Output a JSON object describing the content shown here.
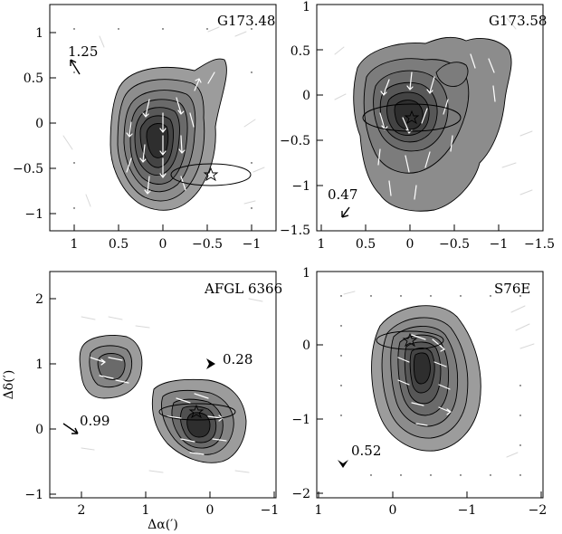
{
  "chart_data": [
    {
      "type": "contour",
      "title": "G173.48",
      "xlim": [
        1.35,
        -1.1
      ],
      "ylim": [
        -1.2,
        1.25
      ],
      "x_ticks": [
        1,
        0.5,
        0,
        -0.5,
        -1
      ],
      "x_tick_labels": [
        "1",
        "0.5",
        "0",
        "−0.5",
        "−1"
      ],
      "y_ticks": [
        1,
        0.5,
        0,
        -0.5,
        -1
      ],
      "y_tick_labels": [
        "1",
        "0.5",
        "0",
        "−0.5",
        "−1"
      ],
      "peak": [
        0.0,
        -0.1
      ],
      "contour_levels": 7,
      "star": [
        -0.5,
        -0.57
      ],
      "beam": {
        "center": [
          -0.5,
          -0.57
        ],
        "major": 0.9,
        "minor": 0.24,
        "angle_deg": 0
      },
      "scale_vector_value": "1.25",
      "scale_vector_pos": [
        1.05,
        0.72
      ],
      "scale_vector_dir_deg": 120,
      "ylabel": "",
      "xlabel": ""
    },
    {
      "type": "contour",
      "title": "G173.58",
      "xlim": [
        1.05,
        -1.5
      ],
      "ylim": [
        -1.5,
        1.0
      ],
      "x_ticks": [
        1,
        0.5,
        0,
        -0.5,
        -1,
        -1.5
      ],
      "x_tick_labels": [
        "1",
        "0.5",
        "0",
        "−0.5",
        "−1",
        "−1.5"
      ],
      "y_ticks": [
        1,
        0.5,
        0,
        -0.5,
        -1,
        -1.5
      ],
      "y_tick_labels": [
        "1",
        "0.5",
        "0",
        "−0.5",
        "−1",
        "−1.5"
      ],
      "peak": [
        0.0,
        -0.25
      ],
      "contour_levels": 6,
      "star": [
        -0.02,
        -0.26
      ],
      "beam": {
        "center": [
          -0.02,
          -0.26
        ],
        "major": 1.08,
        "minor": 0.3,
        "angle_deg": 0
      },
      "scale_vector_value": "0.47",
      "scale_vector_pos": [
        0.73,
        -1.28
      ],
      "scale_vector_dir_deg": 225,
      "ylabel": "",
      "xlabel": ""
    },
    {
      "type": "contour",
      "title": "AFGL 6366",
      "xlim": [
        2.5,
        -1.0
      ],
      "ylim": [
        -1.0,
        2.5
      ],
      "x_ticks": [
        2,
        1,
        0,
        -1
      ],
      "x_tick_labels": [
        "2",
        "1",
        "0",
        "−1"
      ],
      "y_ticks": [
        2,
        1,
        0,
        -1
      ],
      "y_tick_labels": [
        "2",
        "1",
        "0",
        "−1"
      ],
      "peak": [
        0.05,
        0.1
      ],
      "secondary_peak": [
        1.45,
        0.95
      ],
      "contour_levels": 7,
      "star": [
        0.2,
        0.26
      ],
      "beam": {
        "center": [
          0.2,
          0.26
        ],
        "major": 1.1,
        "minor": 0.2,
        "angle_deg": 0
      },
      "scale_vector_value": "0.99",
      "scale_vector_pos": [
        2.05,
        0.08
      ],
      "scale_vector_dir_deg": 330,
      "second_scale_vector_value": "0.28",
      "second_scale_vector_pos": [
        0.1,
        1.05
      ],
      "ylabel": "Δδ(′)",
      "xlabel": "Δα(′)"
    },
    {
      "type": "contour",
      "title": "S76E",
      "xlim": [
        1.0,
        -2.0
      ],
      "ylim": [
        -2.0,
        1.0
      ],
      "x_ticks": [
        1,
        0,
        -1,
        -2
      ],
      "x_tick_labels": [
        "1",
        "0",
        "−1",
        "−2"
      ],
      "y_ticks": [
        1,
        0,
        -1,
        -2
      ],
      "y_tick_labels": [
        "1",
        "0",
        "−1",
        "−2"
      ],
      "peak": [
        -0.3,
        -0.2
      ],
      "contour_levels": 7,
      "star": [
        -0.2,
        0.06
      ],
      "beam": {
        "center": [
          -0.2,
          0.06
        ],
        "major": 0.9,
        "minor": 0.24,
        "angle_deg": 0
      },
      "scale_vector_value": "0.52",
      "scale_vector_pos": [
        0.7,
        -1.6
      ],
      "scale_vector_dir_deg": 240,
      "ylabel": "",
      "xlabel": ""
    }
  ],
  "colors": {
    "contour_fill_light": "#9a9a9a",
    "contour_fill_dark": "#2e2e2e",
    "contour_line": "#000000",
    "vector_on_map": "#ffffff",
    "vector_off_map": "#d8d8d8",
    "frame": "#000000"
  }
}
